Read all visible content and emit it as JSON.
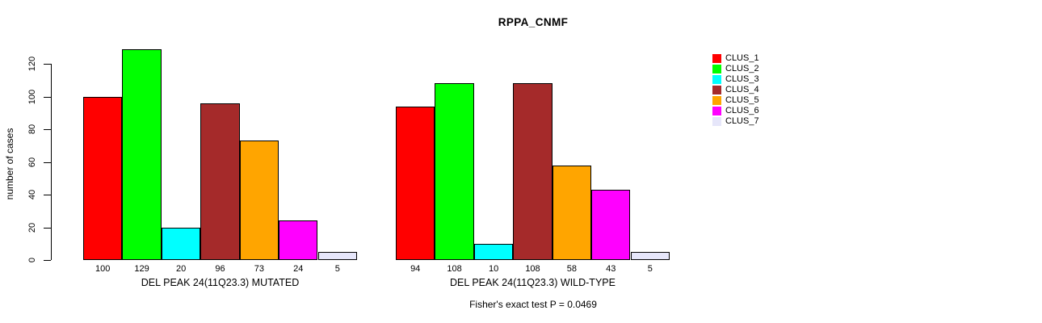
{
  "title": "RPPA_CNMF",
  "chart_data": {
    "type": "bar",
    "title": "RPPA_CNMF",
    "xlabel": "",
    "ylabel": "number of cases",
    "ylim": [
      0,
      130
    ],
    "y_ticks": [
      0,
      20,
      40,
      60,
      80,
      100,
      120
    ],
    "grid": false,
    "legend_position": "right",
    "series_labels": [
      "CLUS_1",
      "CLUS_2",
      "CLUS_3",
      "CLUS_4",
      "CLUS_5",
      "CLUS_6",
      "CLUS_7"
    ],
    "series_colors": [
      "#FF0000",
      "#00FF00",
      "#00FFFF",
      "#A52A2A",
      "#FFA500",
      "#FF00FF",
      "#E6E6FA"
    ],
    "groups": [
      {
        "label": "DEL PEAK 24(11Q23.3) MUTATED",
        "values": [
          100,
          129,
          20,
          96,
          73,
          24,
          5
        ]
      },
      {
        "label": "DEL PEAK 24(11Q23.3) WILD-TYPE",
        "values": [
          94,
          108,
          10,
          108,
          58,
          43,
          5
        ]
      }
    ],
    "annotation": "Fisher's exact test P = 0.0469"
  }
}
